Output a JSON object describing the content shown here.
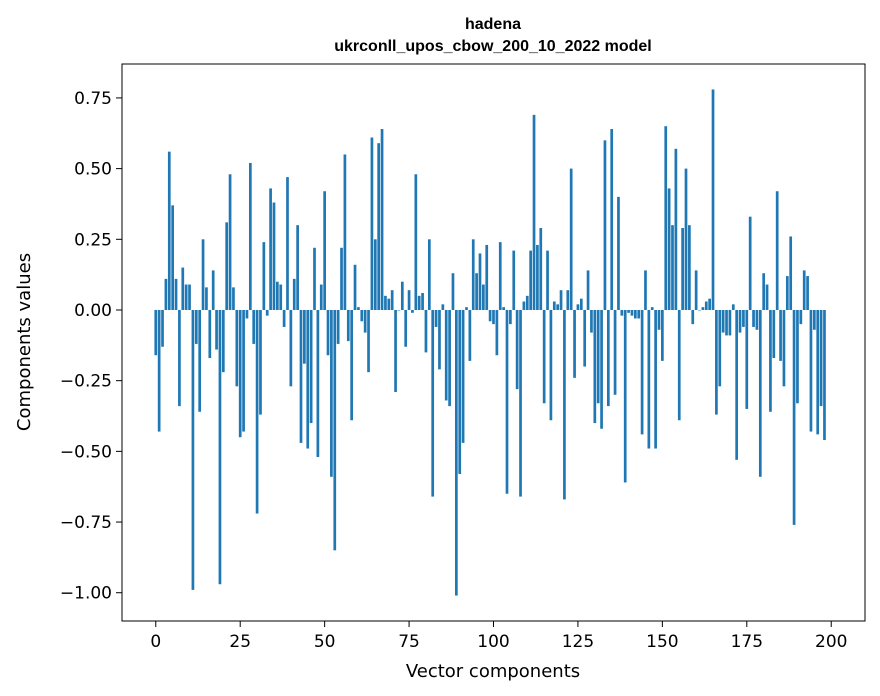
{
  "chart_data": {
    "type": "bar",
    "title": "hadena",
    "subtitle": "ukrconll_upos_cbow_200_10_2022 model",
    "xlabel": "Vector components",
    "ylabel": "Components values",
    "xlim": [
      -10,
      210
    ],
    "ylim": [
      -1.1,
      0.87
    ],
    "xticks": [
      0,
      25,
      50,
      75,
      100,
      125,
      150,
      175,
      200
    ],
    "xtick_labels": [
      "0",
      "25",
      "50",
      "75",
      "100",
      "125",
      "150",
      "175",
      "200"
    ],
    "yticks": [
      0.75,
      0.5,
      0.25,
      0.0,
      -0.25,
      -0.5,
      -0.75,
      -1.0
    ],
    "ytick_labels": [
      "0.75",
      "0.50",
      "0.25",
      "0.00",
      "−0.25",
      "−0.50",
      "−0.75",
      "−1.00"
    ],
    "grid": false,
    "bar_color": "#1f77b4",
    "values": [
      -0.16,
      -0.43,
      -0.13,
      0.11,
      0.56,
      0.37,
      0.11,
      -0.34,
      0.15,
      0.09,
      0.09,
      -0.99,
      -0.12,
      -0.36,
      0.25,
      0.08,
      -0.17,
      0.14,
      -0.14,
      -0.97,
      -0.22,
      0.31,
      0.48,
      0.08,
      -0.27,
      -0.45,
      -0.43,
      -0.03,
      0.52,
      -0.12,
      -0.72,
      -0.37,
      0.24,
      -0.02,
      0.43,
      0.38,
      0.1,
      0.09,
      -0.06,
      0.47,
      -0.27,
      0.11,
      0.3,
      -0.47,
      -0.19,
      -0.49,
      -0.4,
      0.22,
      -0.52,
      0.09,
      0.42,
      -0.16,
      -0.59,
      -0.85,
      -0.12,
      0.22,
      0.55,
      -0.11,
      -0.39,
      0.16,
      0.01,
      -0.04,
      -0.08,
      -0.22,
      0.61,
      0.25,
      0.59,
      0.64,
      0.05,
      0.04,
      0.07,
      -0.29,
      0.0,
      0.1,
      -0.13,
      0.07,
      -0.01,
      0.48,
      0.05,
      0.06,
      -0.15,
      0.25,
      -0.66,
      -0.06,
      -0.21,
      0.02,
      -0.32,
      -0.34,
      0.13,
      -1.01,
      -0.58,
      -0.47,
      0.01,
      -0.18,
      0.25,
      0.13,
      0.2,
      0.09,
      0.23,
      -0.04,
      -0.05,
      -0.16,
      0.24,
      0.01,
      -0.65,
      -0.05,
      0.21,
      -0.28,
      -0.66,
      0.03,
      0.05,
      0.21,
      0.69,
      0.23,
      0.29,
      -0.33,
      0.21,
      -0.39,
      0.03,
      0.02,
      0.07,
      -0.67,
      0.07,
      0.5,
      -0.24,
      0.02,
      0.04,
      -0.2,
      0.14,
      -0.08,
      -0.4,
      -0.33,
      -0.42,
      0.6,
      -0.34,
      0.64,
      -0.3,
      0.4,
      -0.02,
      -0.61,
      -0.01,
      -0.02,
      -0.03,
      -0.03,
      -0.44,
      0.14,
      -0.49,
      0.01,
      -0.49,
      -0.07,
      -0.18,
      0.65,
      0.43,
      0.3,
      0.57,
      -0.39,
      0.29,
      0.5,
      0.3,
      -0.05,
      0.14,
      0.0,
      0.01,
      0.03,
      0.04,
      0.78,
      -0.37,
      -0.27,
      -0.08,
      -0.09,
      -0.09,
      0.02,
      -0.53,
      -0.08,
      -0.06,
      -0.35,
      0.33,
      -0.06,
      -0.07,
      -0.59,
      0.13,
      0.09,
      -0.36,
      -0.17,
      0.42,
      -0.18,
      -0.27,
      0.12,
      0.26,
      -0.76,
      -0.33,
      -0.05,
      0.14,
      0.12,
      -0.43,
      -0.07,
      -0.44,
      -0.34,
      -0.46
    ]
  }
}
